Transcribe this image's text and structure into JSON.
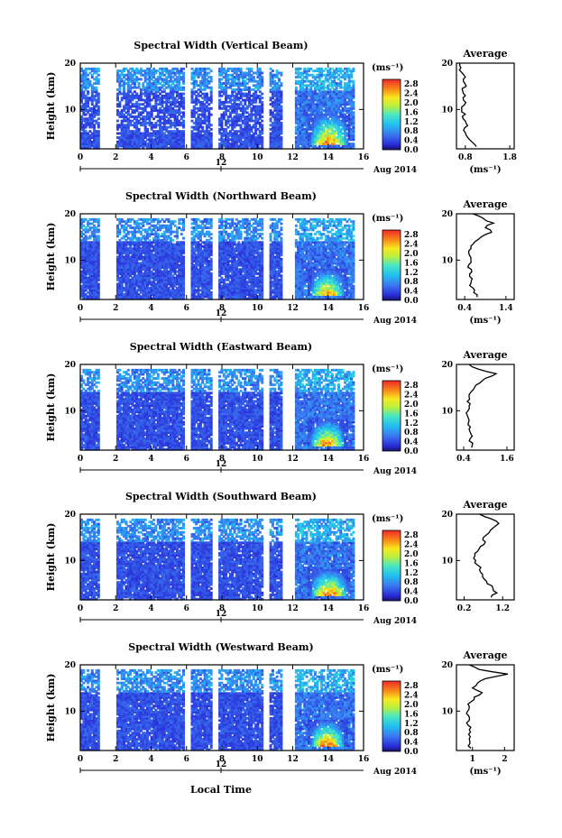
{
  "figure": {
    "date_label": "Aug 2014",
    "date_tick": "12",
    "xlabel": "Local Time",
    "ylabel": "Height (km)",
    "colorbar_unit": "(ms⁻¹)",
    "profile_title": "Average",
    "profile_xlabel": "(ms⁻¹)",
    "x_ticks": [
      "0",
      "2",
      "4",
      "6",
      "8",
      "10",
      "12",
      "14",
      "16"
    ],
    "y_ticks": [
      "10",
      "20"
    ],
    "colorbar_ticks": [
      "2.8",
      "2.4",
      "2.0",
      "1.6",
      "1.2",
      "0.8",
      "0.4",
      "0.0"
    ]
  },
  "chart_data": [
    {
      "type": "heatmap",
      "title": "Spectral Width (Vertical Beam)",
      "xlabel": "Local Time",
      "ylabel": "Height (km)",
      "xlim": [
        0,
        16
      ],
      "ylim": [
        1.5,
        20
      ],
      "colorbar_range": [
        0,
        3.0
      ],
      "data_gaps_hours": [
        [
          1.0,
          2.0
        ],
        [
          5.8,
          6.2
        ],
        [
          7.4,
          7.8
        ],
        [
          10.3,
          10.6
        ],
        [
          11.3,
          12.0
        ]
      ],
      "enhanced_region": {
        "hours": [
          12.8,
          15.2
        ],
        "height_km": [
          2,
          9
        ],
        "value_ms": 3.0
      },
      "profile": {
        "title": "Average",
        "xlabel": "(ms⁻¹)",
        "x_ticks": [
          "0.8",
          "1.8"
        ],
        "xlim": [
          0.6,
          1.9
        ],
        "y_ticks": [
          "10",
          "20"
        ],
        "height_km": [
          2,
          3,
          4,
          5,
          6,
          7,
          8,
          9,
          10,
          11,
          12,
          13,
          14,
          15,
          16,
          17,
          18,
          19,
          20
        ],
        "value_ms": [
          1.05,
          0.95,
          0.85,
          0.8,
          0.78,
          0.82,
          0.75,
          0.8,
          0.72,
          0.78,
          0.76,
          0.8,
          0.74,
          0.82,
          0.76,
          0.8,
          0.72,
          0.7,
          0.68
        ]
      }
    },
    {
      "type": "heatmap",
      "title": "Spectral Width (Northward Beam)",
      "xlabel": "Local Time",
      "ylabel": "Height (km)",
      "xlim": [
        0,
        16
      ],
      "ylim": [
        1.5,
        20
      ],
      "colorbar_range": [
        0,
        3.0
      ],
      "data_gaps_hours": [
        [
          1.0,
          2.0
        ],
        [
          5.8,
          6.2
        ],
        [
          7.4,
          7.8
        ],
        [
          10.3,
          10.6
        ],
        [
          11.3,
          12.0
        ]
      ],
      "enhanced_region": {
        "hours": [
          12.8,
          15.0
        ],
        "height_km": [
          2,
          8
        ],
        "value_ms": 2.8
      },
      "profile": {
        "title": "Average",
        "xlabel": "(ms⁻¹)",
        "x_ticks": [
          "0.4",
          "1.4"
        ],
        "xlim": [
          0.2,
          1.6
        ],
        "y_ticks": [
          "10",
          "20"
        ],
        "height_km": [
          2,
          3,
          4,
          5,
          6,
          7,
          8,
          9,
          10,
          11,
          12,
          13,
          14,
          15,
          16,
          17,
          18,
          19,
          20
        ],
        "value_ms": [
          0.7,
          0.62,
          0.6,
          0.55,
          0.58,
          0.52,
          0.56,
          0.5,
          0.55,
          0.52,
          0.5,
          0.55,
          0.65,
          0.8,
          1.05,
          0.9,
          1.1,
          0.85,
          0.6
        ]
      }
    },
    {
      "type": "heatmap",
      "title": "Spectral Width (Eastward Beam)",
      "xlabel": "Local Time",
      "ylabel": "Height (km)",
      "xlim": [
        0,
        16
      ],
      "ylim": [
        1.5,
        20
      ],
      "colorbar_range": [
        0,
        3.0
      ],
      "data_gaps_hours": [
        [
          1.0,
          2.0
        ],
        [
          5.8,
          6.2
        ],
        [
          7.4,
          7.8
        ],
        [
          10.3,
          10.6
        ],
        [
          11.3,
          12.0
        ]
      ],
      "enhanced_region": {
        "hours": [
          12.8,
          15.0
        ],
        "height_km": [
          2,
          8
        ],
        "value_ms": 3.0
      },
      "profile": {
        "title": "Average",
        "xlabel": "",
        "x_ticks": [
          "0.4",
          "1.6"
        ],
        "xlim": [
          0.2,
          1.8
        ],
        "y_ticks": [
          "10",
          "20"
        ],
        "height_km": [
          2,
          3,
          4,
          5,
          6,
          7,
          8,
          9,
          10,
          11,
          12,
          13,
          14,
          15,
          16,
          17,
          18,
          19,
          20
        ],
        "value_ms": [
          0.62,
          0.65,
          0.58,
          0.6,
          0.55,
          0.52,
          0.55,
          0.5,
          0.52,
          0.55,
          0.5,
          0.55,
          0.6,
          0.7,
          0.85,
          1.0,
          1.3,
          0.8,
          0.55
        ]
      }
    },
    {
      "type": "heatmap",
      "title": "Spectral Width (Southward Beam)",
      "xlabel": "Local Time",
      "ylabel": "Height (km)",
      "xlim": [
        0,
        16
      ],
      "ylim": [
        1.5,
        20
      ],
      "colorbar_range": [
        0,
        3.0
      ],
      "data_gaps_hours": [
        [
          1.0,
          2.0
        ],
        [
          5.8,
          6.2
        ],
        [
          7.4,
          7.8
        ],
        [
          10.3,
          10.6
        ],
        [
          11.3,
          12.0
        ]
      ],
      "enhanced_region": {
        "hours": [
          12.8,
          15.2
        ],
        "height_km": [
          2,
          8
        ],
        "value_ms": 3.0
      },
      "profile": {
        "title": "Average",
        "xlabel": "",
        "x_ticks": [
          "0.2",
          "1.2"
        ],
        "xlim": [
          0.0,
          1.5
        ],
        "y_ticks": [
          "10",
          "20"
        ],
        "height_km": [
          2,
          3,
          4,
          5,
          6,
          7,
          8,
          9,
          10,
          11,
          12,
          13,
          14,
          15,
          16,
          17,
          18,
          19,
          20
        ],
        "value_ms": [
          0.9,
          1.05,
          0.95,
          0.8,
          0.72,
          0.68,
          0.6,
          0.55,
          0.5,
          0.48,
          0.55,
          0.62,
          0.75,
          0.7,
          0.85,
          0.95,
          1.1,
          0.9,
          0.6
        ]
      }
    },
    {
      "type": "heatmap",
      "title": "Spectral Width (Westward Beam)",
      "xlabel": "Local Time",
      "ylabel": "Height (km)",
      "xlim": [
        0,
        16
      ],
      "ylim": [
        1.5,
        20
      ],
      "colorbar_range": [
        0,
        3.0
      ],
      "data_gaps_hours": [
        [
          1.0,
          2.0
        ],
        [
          5.8,
          6.2
        ],
        [
          7.4,
          7.8
        ],
        [
          10.3,
          10.6
        ],
        [
          11.3,
          12.0
        ]
      ],
      "enhanced_region": {
        "hours": [
          12.8,
          15.0
        ],
        "height_km": [
          2,
          8
        ],
        "value_ms": 3.0
      },
      "profile": {
        "title": "Average",
        "xlabel": "(ms⁻¹)",
        "x_ticks": [
          "1",
          "2"
        ],
        "xlim": [
          0.5,
          2.3
        ],
        "y_ticks": [
          "10",
          "20"
        ],
        "height_km": [
          2,
          3,
          4,
          5,
          6,
          7,
          8,
          9,
          10,
          11,
          12,
          13,
          14,
          15,
          16,
          17,
          18,
          19,
          20
        ],
        "value_ms": [
          0.95,
          0.92,
          0.9,
          0.88,
          0.9,
          0.86,
          0.9,
          0.88,
          0.85,
          0.9,
          0.95,
          1.05,
          1.3,
          1.0,
          1.15,
          1.4,
          2.1,
          1.2,
          0.9
        ]
      }
    }
  ]
}
